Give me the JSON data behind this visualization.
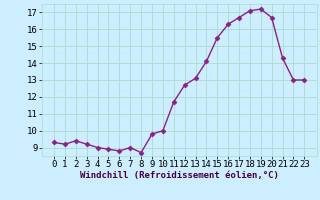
{
  "x": [
    0,
    1,
    2,
    3,
    4,
    5,
    6,
    7,
    8,
    9,
    10,
    11,
    12,
    13,
    14,
    15,
    16,
    17,
    18,
    19,
    20,
    21,
    22,
    23
  ],
  "y": [
    9.3,
    9.2,
    9.4,
    9.2,
    9.0,
    8.9,
    8.8,
    9.0,
    8.7,
    9.8,
    10.0,
    11.7,
    12.7,
    13.1,
    14.1,
    15.5,
    16.3,
    16.7,
    17.1,
    17.2,
    16.7,
    14.3,
    13.0,
    13.0
  ],
  "line_color": "#882288",
  "marker": "D",
  "marker_size": 2.5,
  "bg_color": "#cceeff",
  "grid_color": "#aaddcc",
  "xlabel": "Windchill (Refroidissement éolien,°C)",
  "ylim": [
    8.5,
    17.5
  ],
  "ytick_min": 9,
  "ytick_max": 17,
  "xticks": [
    0,
    1,
    2,
    3,
    4,
    5,
    6,
    7,
    8,
    9,
    10,
    11,
    12,
    13,
    14,
    15,
    16,
    17,
    18,
    19,
    20,
    21,
    22,
    23
  ],
  "tick_fontsize": 6.5,
  "xlabel_fontsize": 6.5,
  "linewidth": 1.0
}
